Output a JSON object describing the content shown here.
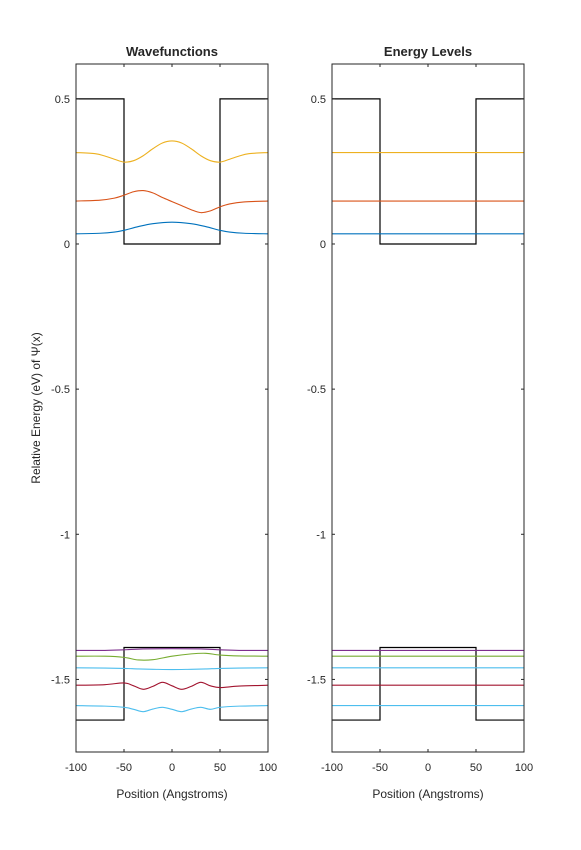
{
  "figure": {
    "ylabel": "Relative Energy (eV) of Ψ(x)"
  },
  "chart_data": [
    {
      "type": "line",
      "title": "Wavefunctions",
      "xlabel": "Position (Angstroms)",
      "xlim": [
        -100,
        100
      ],
      "ylim": [
        -1.75,
        0.62
      ],
      "xticks": [
        -100,
        -50,
        0,
        50,
        100
      ],
      "xtick_labels": [
        "-100",
        "-50",
        "0",
        "50",
        "100"
      ],
      "yticks": [
        0.5,
        0,
        -0.5,
        -1,
        -1.5
      ],
      "ytick_labels": [
        "0.5",
        "0",
        "-0.5",
        "-1",
        "-1.5"
      ],
      "grid": false,
      "series": [
        {
          "kind": "potential",
          "color": "#000000",
          "x": [
            -100,
            -50,
            -50,
            50,
            50,
            100
          ],
          "y": [
            0.5,
            0.5,
            0,
            0,
            0.5,
            0.5
          ]
        },
        {
          "kind": "potential",
          "color": "#000000",
          "x": [
            -100,
            -50,
            -50,
            50,
            50,
            100
          ],
          "y": [
            -1.64,
            -1.64,
            -1.39,
            -1.39,
            -1.64,
            -1.64
          ]
        },
        {
          "kind": "wavefunction",
          "color": "#0072BD",
          "energy": 0.035,
          "x": [
            -100,
            -75,
            -60,
            -50,
            -35,
            -20,
            0,
            20,
            35,
            50,
            60,
            75,
            100
          ],
          "y": [
            0.035,
            0.037,
            0.041,
            0.047,
            0.06,
            0.07,
            0.075,
            0.07,
            0.06,
            0.047,
            0.041,
            0.037,
            0.035
          ]
        },
        {
          "kind": "wavefunction",
          "color": "#D95319",
          "energy": 0.148,
          "x": [
            -100,
            -75,
            -60,
            -50,
            -40,
            -30,
            -20,
            -10,
            0,
            10,
            20,
            30,
            40,
            50,
            60,
            75,
            100
          ],
          "y": [
            0.148,
            0.151,
            0.158,
            0.168,
            0.18,
            0.184,
            0.176,
            0.16,
            0.146,
            0.132,
            0.118,
            0.108,
            0.114,
            0.128,
            0.138,
            0.145,
            0.148
          ]
        },
        {
          "kind": "wavefunction",
          "color": "#EDB120",
          "energy": 0.315,
          "x": [
            -100,
            -80,
            -70,
            -60,
            -50,
            -40,
            -30,
            -20,
            -10,
            0,
            10,
            20,
            30,
            40,
            50,
            60,
            70,
            80,
            100
          ],
          "y": [
            0.315,
            0.311,
            0.303,
            0.292,
            0.282,
            0.287,
            0.304,
            0.328,
            0.348,
            0.355,
            0.348,
            0.328,
            0.304,
            0.287,
            0.282,
            0.292,
            0.303,
            0.311,
            0.315
          ]
        },
        {
          "kind": "wavefunction",
          "color": "#4DBEEE",
          "energy": -1.59,
          "x": [
            -100,
            -70,
            -50,
            -40,
            -30,
            -20,
            -10,
            0,
            10,
            20,
            30,
            40,
            50,
            70,
            100
          ],
          "y": [
            -1.59,
            -1.592,
            -1.596,
            -1.603,
            -1.611,
            -1.602,
            -1.596,
            -1.603,
            -1.611,
            -1.602,
            -1.596,
            -1.603,
            -1.596,
            -1.592,
            -1.59
          ]
        },
        {
          "kind": "wavefunction",
          "color": "#A2142F",
          "energy": -1.52,
          "x": [
            -100,
            -70,
            -50,
            -40,
            -30,
            -20,
            -10,
            0,
            10,
            20,
            30,
            40,
            50,
            70,
            100
          ],
          "y": [
            -1.52,
            -1.518,
            -1.512,
            -1.522,
            -1.534,
            -1.524,
            -1.51,
            -1.522,
            -1.534,
            -1.524,
            -1.51,
            -1.522,
            -1.528,
            -1.523,
            -1.52
          ]
        },
        {
          "kind": "wavefunction",
          "color": "#4DBEEE",
          "energy": -1.46,
          "x": [
            -100,
            -70,
            -50,
            -35,
            -20,
            0,
            20,
            35,
            50,
            70,
            100
          ],
          "y": [
            -1.46,
            -1.461,
            -1.462,
            -1.464,
            -1.465,
            -1.466,
            -1.465,
            -1.464,
            -1.462,
            -1.461,
            -1.46
          ]
        },
        {
          "kind": "wavefunction",
          "color": "#77AC30",
          "energy": -1.42,
          "x": [
            -100,
            -70,
            -50,
            -35,
            -20,
            0,
            20,
            35,
            50,
            70,
            100
          ],
          "y": [
            -1.42,
            -1.42,
            -1.424,
            -1.433,
            -1.432,
            -1.42,
            -1.412,
            -1.41,
            -1.416,
            -1.419,
            -1.42
          ]
        },
        {
          "kind": "wavefunction",
          "color": "#7E2F8E",
          "energy": -1.4,
          "x": [
            -100,
            -70,
            -50,
            -30,
            0,
            30,
            50,
            70,
            100
          ],
          "y": [
            -1.4,
            -1.4,
            -1.398,
            -1.395,
            -1.394,
            -1.395,
            -1.398,
            -1.4,
            -1.4
          ]
        }
      ]
    },
    {
      "type": "line",
      "title": "Energy Levels",
      "xlabel": "Position (Angstroms)",
      "xlim": [
        -100,
        100
      ],
      "ylim": [
        -1.75,
        0.62
      ],
      "xticks": [
        -100,
        -50,
        0,
        50,
        100
      ],
      "xtick_labels": [
        "-100",
        "-50",
        "0",
        "50",
        "100"
      ],
      "yticks": [
        0.5,
        0,
        -0.5,
        -1,
        -1.5
      ],
      "ytick_labels": [
        "0.5",
        "0",
        "-0.5",
        "-1",
        "-1.5"
      ],
      "grid": false,
      "series": [
        {
          "kind": "potential",
          "color": "#000000",
          "x": [
            -100,
            -50,
            -50,
            50,
            50,
            100
          ],
          "y": [
            0.5,
            0.5,
            0,
            0,
            0.5,
            0.5
          ]
        },
        {
          "kind": "potential",
          "color": "#000000",
          "x": [
            -100,
            -50,
            -50,
            50,
            50,
            100
          ],
          "y": [
            -1.64,
            -1.64,
            -1.39,
            -1.39,
            -1.64,
            -1.64
          ]
        },
        {
          "kind": "level",
          "color": "#0072BD",
          "x": [
            -100,
            100
          ],
          "y": [
            0.035,
            0.035
          ]
        },
        {
          "kind": "level",
          "color": "#D95319",
          "x": [
            -100,
            100
          ],
          "y": [
            0.148,
            0.148
          ]
        },
        {
          "kind": "level",
          "color": "#EDB120",
          "x": [
            -100,
            100
          ],
          "y": [
            0.315,
            0.315
          ]
        },
        {
          "kind": "level",
          "color": "#4DBEEE",
          "x": [
            -100,
            100
          ],
          "y": [
            -1.59,
            -1.59
          ]
        },
        {
          "kind": "level",
          "color": "#A2142F",
          "x": [
            -100,
            100
          ],
          "y": [
            -1.52,
            -1.52
          ]
        },
        {
          "kind": "level",
          "color": "#4DBEEE",
          "x": [
            -100,
            100
          ],
          "y": [
            -1.46,
            -1.46
          ]
        },
        {
          "kind": "level",
          "color": "#77AC30",
          "x": [
            -100,
            100
          ],
          "y": [
            -1.42,
            -1.42
          ]
        },
        {
          "kind": "level",
          "color": "#7E2F8E",
          "x": [
            -100,
            100
          ],
          "y": [
            -1.4,
            -1.4
          ]
        }
      ]
    }
  ]
}
